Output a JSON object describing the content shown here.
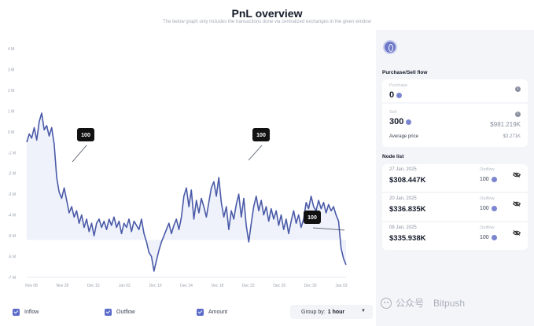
{
  "header": {
    "title": "PnL overview",
    "subtitle": "The below graph only includes the transactions done via centralized exchanges in the given window"
  },
  "chart_data": {
    "type": "line",
    "y_ticks": [
      "4 M",
      "3 M",
      "2 M",
      "1 M",
      "0 M",
      "-1 M",
      "-2 M",
      "-3 M",
      "-4 M",
      "-5 M",
      "-6 M",
      "-7 M"
    ],
    "x_ticks": [
      "Nov 08",
      "Nov 28",
      "Dec 15",
      "Jan 02",
      "Dec 10",
      "Dec 14",
      "Dec 18",
      "Dec 22",
      "Dec 26",
      "Dec 30",
      "Jan 03"
    ],
    "ylim": [
      -7,
      4
    ],
    "series": [
      {
        "values": [
          -0.5,
          -0.1,
          -0.3,
          0.2,
          -0.4,
          0.5,
          0.9,
          0.1,
          0.3,
          -0.2,
          0.2,
          -0.6,
          -2.2,
          -2.9,
          -3.2,
          -2.7,
          -3.3,
          -3.9,
          -3.6,
          -4.1,
          -3.8,
          -4.4,
          -4.0,
          -4.6,
          -4.2,
          -4.8,
          -4.4,
          -5.0,
          -4.4,
          -4.2,
          -4.6,
          -4.3,
          -4.7,
          -4.2,
          -4.5,
          -4.1,
          -4.6,
          -4.3,
          -4.9,
          -4.4,
          -4.6,
          -4.2,
          -4.8,
          -4.3,
          -4.5,
          -4.7,
          -4.2,
          -4.9,
          -5.3,
          -5.8,
          -6.0,
          -6.7,
          -6.2,
          -5.7,
          -5.3,
          -5.0,
          -4.7,
          -4.4,
          -4.9,
          -4.5,
          -4.2,
          -4.7,
          -4.1,
          -3.1,
          -2.7,
          -3.6,
          -2.8,
          -4.2,
          -3.3,
          -3.9,
          -3.2,
          -3.6,
          -4.1,
          -3.4,
          -2.7,
          -2.4,
          -3.1,
          -2.2,
          -3.4,
          -4.1,
          -3.6,
          -4.7,
          -3.8,
          -4.2,
          -3.5,
          -3.0,
          -4.1,
          -3.2,
          -4.5,
          -5.3,
          -4.4,
          -3.6,
          -3.1,
          -3.8,
          -3.3,
          -4.0,
          -3.6,
          -4.3,
          -3.7,
          -4.2,
          -3.8,
          -4.5,
          -4.0,
          -4.7,
          -4.2,
          -4.9,
          -4.3,
          -3.8,
          -4.4,
          -4.0,
          -4.6,
          -4.2,
          -3.4,
          -3.7,
          -3.1,
          -3.6,
          -3.8,
          -3.3,
          -3.7,
          -3.4,
          -3.9,
          -3.5,
          -3.8,
          -3.6,
          -4.0,
          -4.3,
          -5.6,
          -6.1,
          -6.4
        ],
        "color": "#4a5aa8"
      }
    ],
    "callouts": [
      "100",
      "100",
      "100"
    ]
  },
  "legend": {
    "items": [
      {
        "label": "Inflow",
        "color": "#5b6bc9"
      },
      {
        "label": "Outflow",
        "color": "#5b6bc9"
      },
      {
        "label": "Amount",
        "color": "#5b6bc9"
      }
    ],
    "groupby_label": "Group by:",
    "groupby_value": "1 hour"
  },
  "side": {
    "coin_icon": "coin-icon",
    "flow_title": "Purchase/Sell flow",
    "purchase_label": "Purchase",
    "purchase_value": "0",
    "sell_label": "Sell",
    "sell_value": "300",
    "sell_usd": "$981.219K",
    "avg_label": "Average price",
    "avg_value": "$3.271K",
    "node_title": "Node list",
    "nodes": [
      {
        "date": "27 Jan, 2025",
        "amount": "$308.447K",
        "outflow_label": "Outflow",
        "outflow": "100"
      },
      {
        "date": "20 Jan, 2025",
        "amount": "$336.835K",
        "outflow_label": "Outflow",
        "outflow": "100"
      },
      {
        "date": "08 Jan, 2025",
        "amount": "$335.938K",
        "outflow_label": "Outflow",
        "outflow": "100"
      }
    ]
  },
  "watermark": {
    "channel": "公众号",
    "brand": "Bitpush"
  }
}
